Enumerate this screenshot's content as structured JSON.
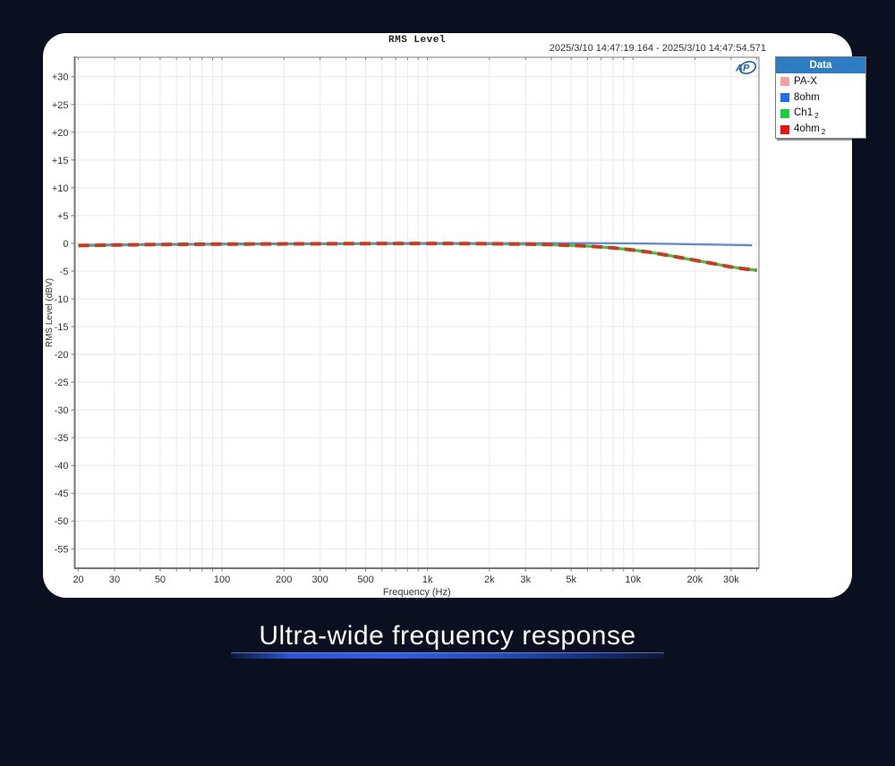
{
  "chart_data": {
    "type": "line",
    "title": "RMS Level",
    "timestamp": "2025/3/10 14:47:19.164 -  2025/3/10 14:47:54.571",
    "xlabel": "Frequency (Hz)",
    "ylabel": "RMS Level (dBV)",
    "x_scale": "log",
    "xlim": [
      19.2,
      41000
    ],
    "ylim": [
      -58.5,
      33.5
    ],
    "grid": true,
    "x_ticks": {
      "values": [
        20,
        30,
        50,
        100,
        200,
        300,
        500,
        1000,
        2000,
        3000,
        5000,
        10000,
        20000,
        30000
      ],
      "labels": [
        "20",
        "30",
        "50",
        "100",
        "200",
        "300",
        "500",
        "1k",
        "2k",
        "3k",
        "5k",
        "10k",
        "20k",
        "30k"
      ]
    },
    "y_tick_step": 5,
    "y_tick_range": [
      30,
      -55
    ],
    "series": [
      {
        "name": "PA-X",
        "color": "#f2a6a6",
        "width": 2,
        "dash": null,
        "points": [
          [
            20,
            -0.3
          ],
          [
            50,
            -0.15
          ],
          [
            100,
            -0.1
          ],
          [
            300,
            -0.03
          ],
          [
            1000,
            0
          ],
          [
            3000,
            0.03
          ],
          [
            6000,
            0.03
          ],
          [
            10000,
            -0.02
          ],
          [
            15000,
            -0.1
          ],
          [
            20000,
            -0.18
          ],
          [
            30000,
            -0.28
          ],
          [
            38000,
            -0.35
          ]
        ]
      },
      {
        "name": "Ch1",
        "sub": "2",
        "color": "#2ecb40",
        "width": 3.2,
        "dash": null,
        "points": [
          [
            20,
            -0.4
          ],
          [
            30,
            -0.3
          ],
          [
            50,
            -0.2
          ],
          [
            100,
            -0.14
          ],
          [
            300,
            -0.07
          ],
          [
            700,
            -0.03
          ],
          [
            1000,
            -0.03
          ],
          [
            1500,
            -0.04
          ],
          [
            2000,
            -0.07
          ],
          [
            3000,
            -0.14
          ],
          [
            4000,
            -0.24
          ],
          [
            5000,
            -0.36
          ],
          [
            6000,
            -0.5
          ],
          [
            7000,
            -0.65
          ],
          [
            8000,
            -0.82
          ],
          [
            10000,
            -1.2
          ],
          [
            12000,
            -1.6
          ],
          [
            15000,
            -2.2
          ],
          [
            20000,
            -3.05
          ],
          [
            25000,
            -3.7
          ],
          [
            30000,
            -4.25
          ],
          [
            35000,
            -4.6
          ],
          [
            40000,
            -4.85
          ]
        ]
      },
      {
        "name": "8ohm",
        "color": "#5c89de",
        "width": 2.2,
        "dash": null,
        "points": [
          [
            20,
            -0.3
          ],
          [
            50,
            -0.15
          ],
          [
            100,
            -0.1
          ],
          [
            300,
            -0.03
          ],
          [
            1000,
            0
          ],
          [
            3000,
            0.03
          ],
          [
            6000,
            0.03
          ],
          [
            10000,
            -0.02
          ],
          [
            15000,
            -0.1
          ],
          [
            20000,
            -0.18
          ],
          [
            30000,
            -0.28
          ],
          [
            38000,
            -0.35
          ]
        ]
      },
      {
        "name": "4ohm",
        "sub": "2",
        "color": "#cc3a1a",
        "width": 4,
        "dash": "12 6.5",
        "points": [
          [
            20,
            -0.4
          ],
          [
            30,
            -0.3
          ],
          [
            50,
            -0.2
          ],
          [
            100,
            -0.14
          ],
          [
            300,
            -0.07
          ],
          [
            700,
            -0.03
          ],
          [
            1000,
            -0.03
          ],
          [
            1500,
            -0.04
          ],
          [
            2000,
            -0.07
          ],
          [
            3000,
            -0.14
          ],
          [
            4000,
            -0.24
          ],
          [
            5000,
            -0.36
          ],
          [
            6000,
            -0.5
          ],
          [
            7000,
            -0.65
          ],
          [
            8000,
            -0.82
          ],
          [
            10000,
            -1.2
          ],
          [
            12000,
            -1.6
          ],
          [
            15000,
            -2.2
          ],
          [
            20000,
            -3.05
          ],
          [
            25000,
            -3.7
          ],
          [
            30000,
            -4.25
          ],
          [
            35000,
            -4.6
          ],
          [
            40000,
            -4.85
          ]
        ]
      }
    ]
  },
  "legend": {
    "header": "Data",
    "items": [
      {
        "label": "PA-X",
        "sub": "",
        "color": "#f2a0a0"
      },
      {
        "label": "8ohm",
        "sub": "",
        "color": "#1e6ef0"
      },
      {
        "label": "Ch1",
        "sub": "2",
        "color": "#17d13a"
      },
      {
        "label": "4ohm",
        "sub": "2",
        "color": "#ec1212"
      }
    ]
  },
  "logo": {
    "label": "AP"
  },
  "caption": {
    "text": "Ultra-wide frequency response"
  }
}
